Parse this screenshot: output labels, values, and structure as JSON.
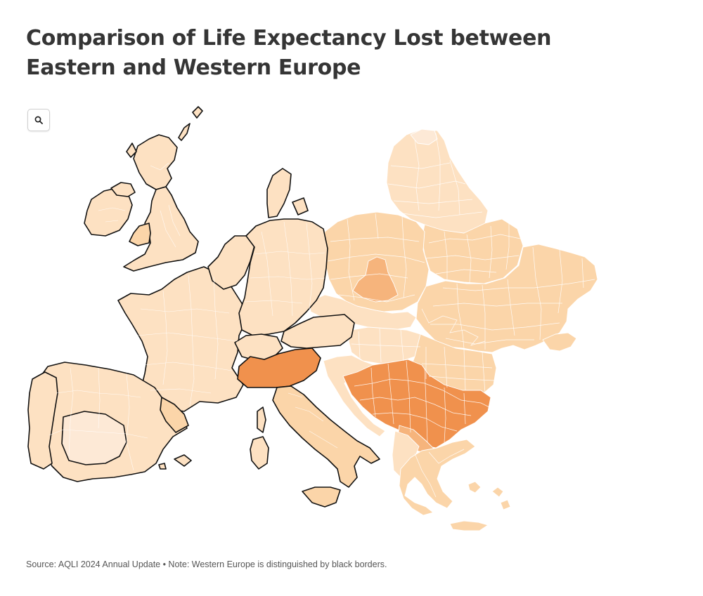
{
  "title": "Comparison of Life Expectancy Lost between Eastern and Western Europe",
  "source_note": "Source: AQLI 2024 Annual Update • Note: Western Europe is distinguished by black borders.",
  "zoom_button": {
    "icon": "search-icon"
  },
  "colors": {
    "lowest": "#fde9d6",
    "low": "#fde1c2",
    "medium": "#fbd5a9",
    "high": "#f6b47c",
    "highest": "#f0914d",
    "western_border": "#111111"
  }
}
